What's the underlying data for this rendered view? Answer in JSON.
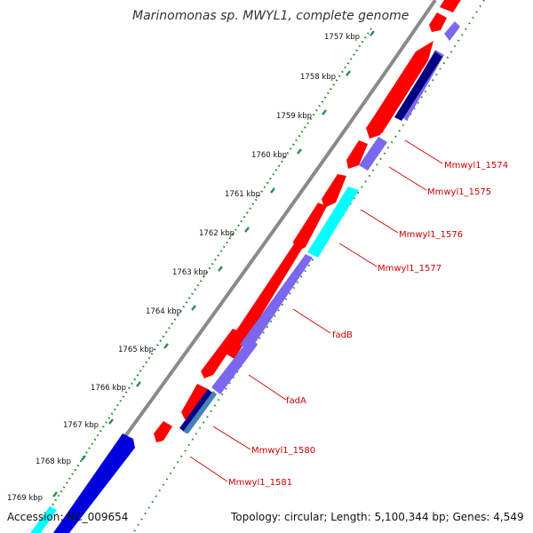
{
  "title": "Marinomonas sp. MWYL1, complete genome",
  "footer": {
    "accession": "Accession: NC_009654",
    "summary": "Topology: circular; Length: 5,100,344 bp; Genes: 4,549"
  },
  "colors": {
    "backbone": "#8a8a8a",
    "forward_cds": "#ff0000",
    "reverse_cds": "#7b68ee",
    "highlight_cyan": "#00ffff",
    "dark_blue": "#000080",
    "blue": "#0000ff",
    "tick": "#2e8b57",
    "label": "#cc0000"
  },
  "kbp_ticks": [
    {
      "label": "1757 kbp"
    },
    {
      "label": "1758 kbp"
    },
    {
      "label": "1759 kbp"
    },
    {
      "label": "1760 kbp"
    },
    {
      "label": "1761 kbp"
    },
    {
      "label": "1762 kbp"
    },
    {
      "label": "1763 kbp"
    },
    {
      "label": "1764 kbp"
    },
    {
      "label": "1765 kbp"
    },
    {
      "label": "1766 kbp"
    },
    {
      "label": "1767 kbp"
    },
    {
      "label": "1768 kbp"
    },
    {
      "label": "1769 kbp"
    }
  ],
  "gene_labels": [
    {
      "label": "Mmwyl1_1574"
    },
    {
      "label": "Mmwyl1_1575"
    },
    {
      "label": "Mmwyl1_1576"
    },
    {
      "label": "Mmwyl1_1577"
    },
    {
      "label": "fadB"
    },
    {
      "label": "fadA"
    },
    {
      "label": "Mmwyl1_1580"
    },
    {
      "label": "Mmwyl1_1581"
    }
  ]
}
